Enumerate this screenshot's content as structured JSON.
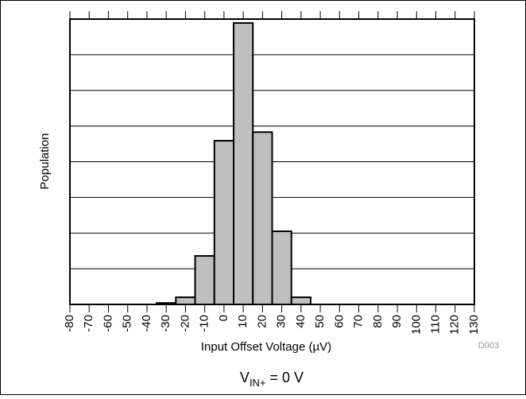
{
  "chart_data": {
    "type": "histogram",
    "xlabel": "Input Offset Voltage (µV)",
    "ylabel": "Population",
    "note": "D003",
    "caption": {
      "main": "V",
      "sub": "IN+",
      "rest": " = 0 V"
    },
    "bins": [
      -35,
      -25,
      -15,
      -5,
      5,
      15,
      25,
      35,
      45
    ],
    "counts": [
      0.04,
      0.2,
      1.36,
      4.59,
      7.89,
      4.83,
      2.05,
      0.2
    ],
    "color": "#bfbfbf",
    "xlim": [
      -80,
      130
    ],
    "xticks": [
      -80,
      -70,
      -60,
      -50,
      -40,
      -30,
      -20,
      -10,
      0,
      10,
      20,
      30,
      40,
      50,
      60,
      70,
      80,
      90,
      100,
      110,
      120,
      130
    ],
    "ylim": [
      0,
      8
    ],
    "yticks": [
      0,
      1,
      2,
      3,
      4,
      5,
      6,
      7,
      8
    ],
    "grid": true
  }
}
